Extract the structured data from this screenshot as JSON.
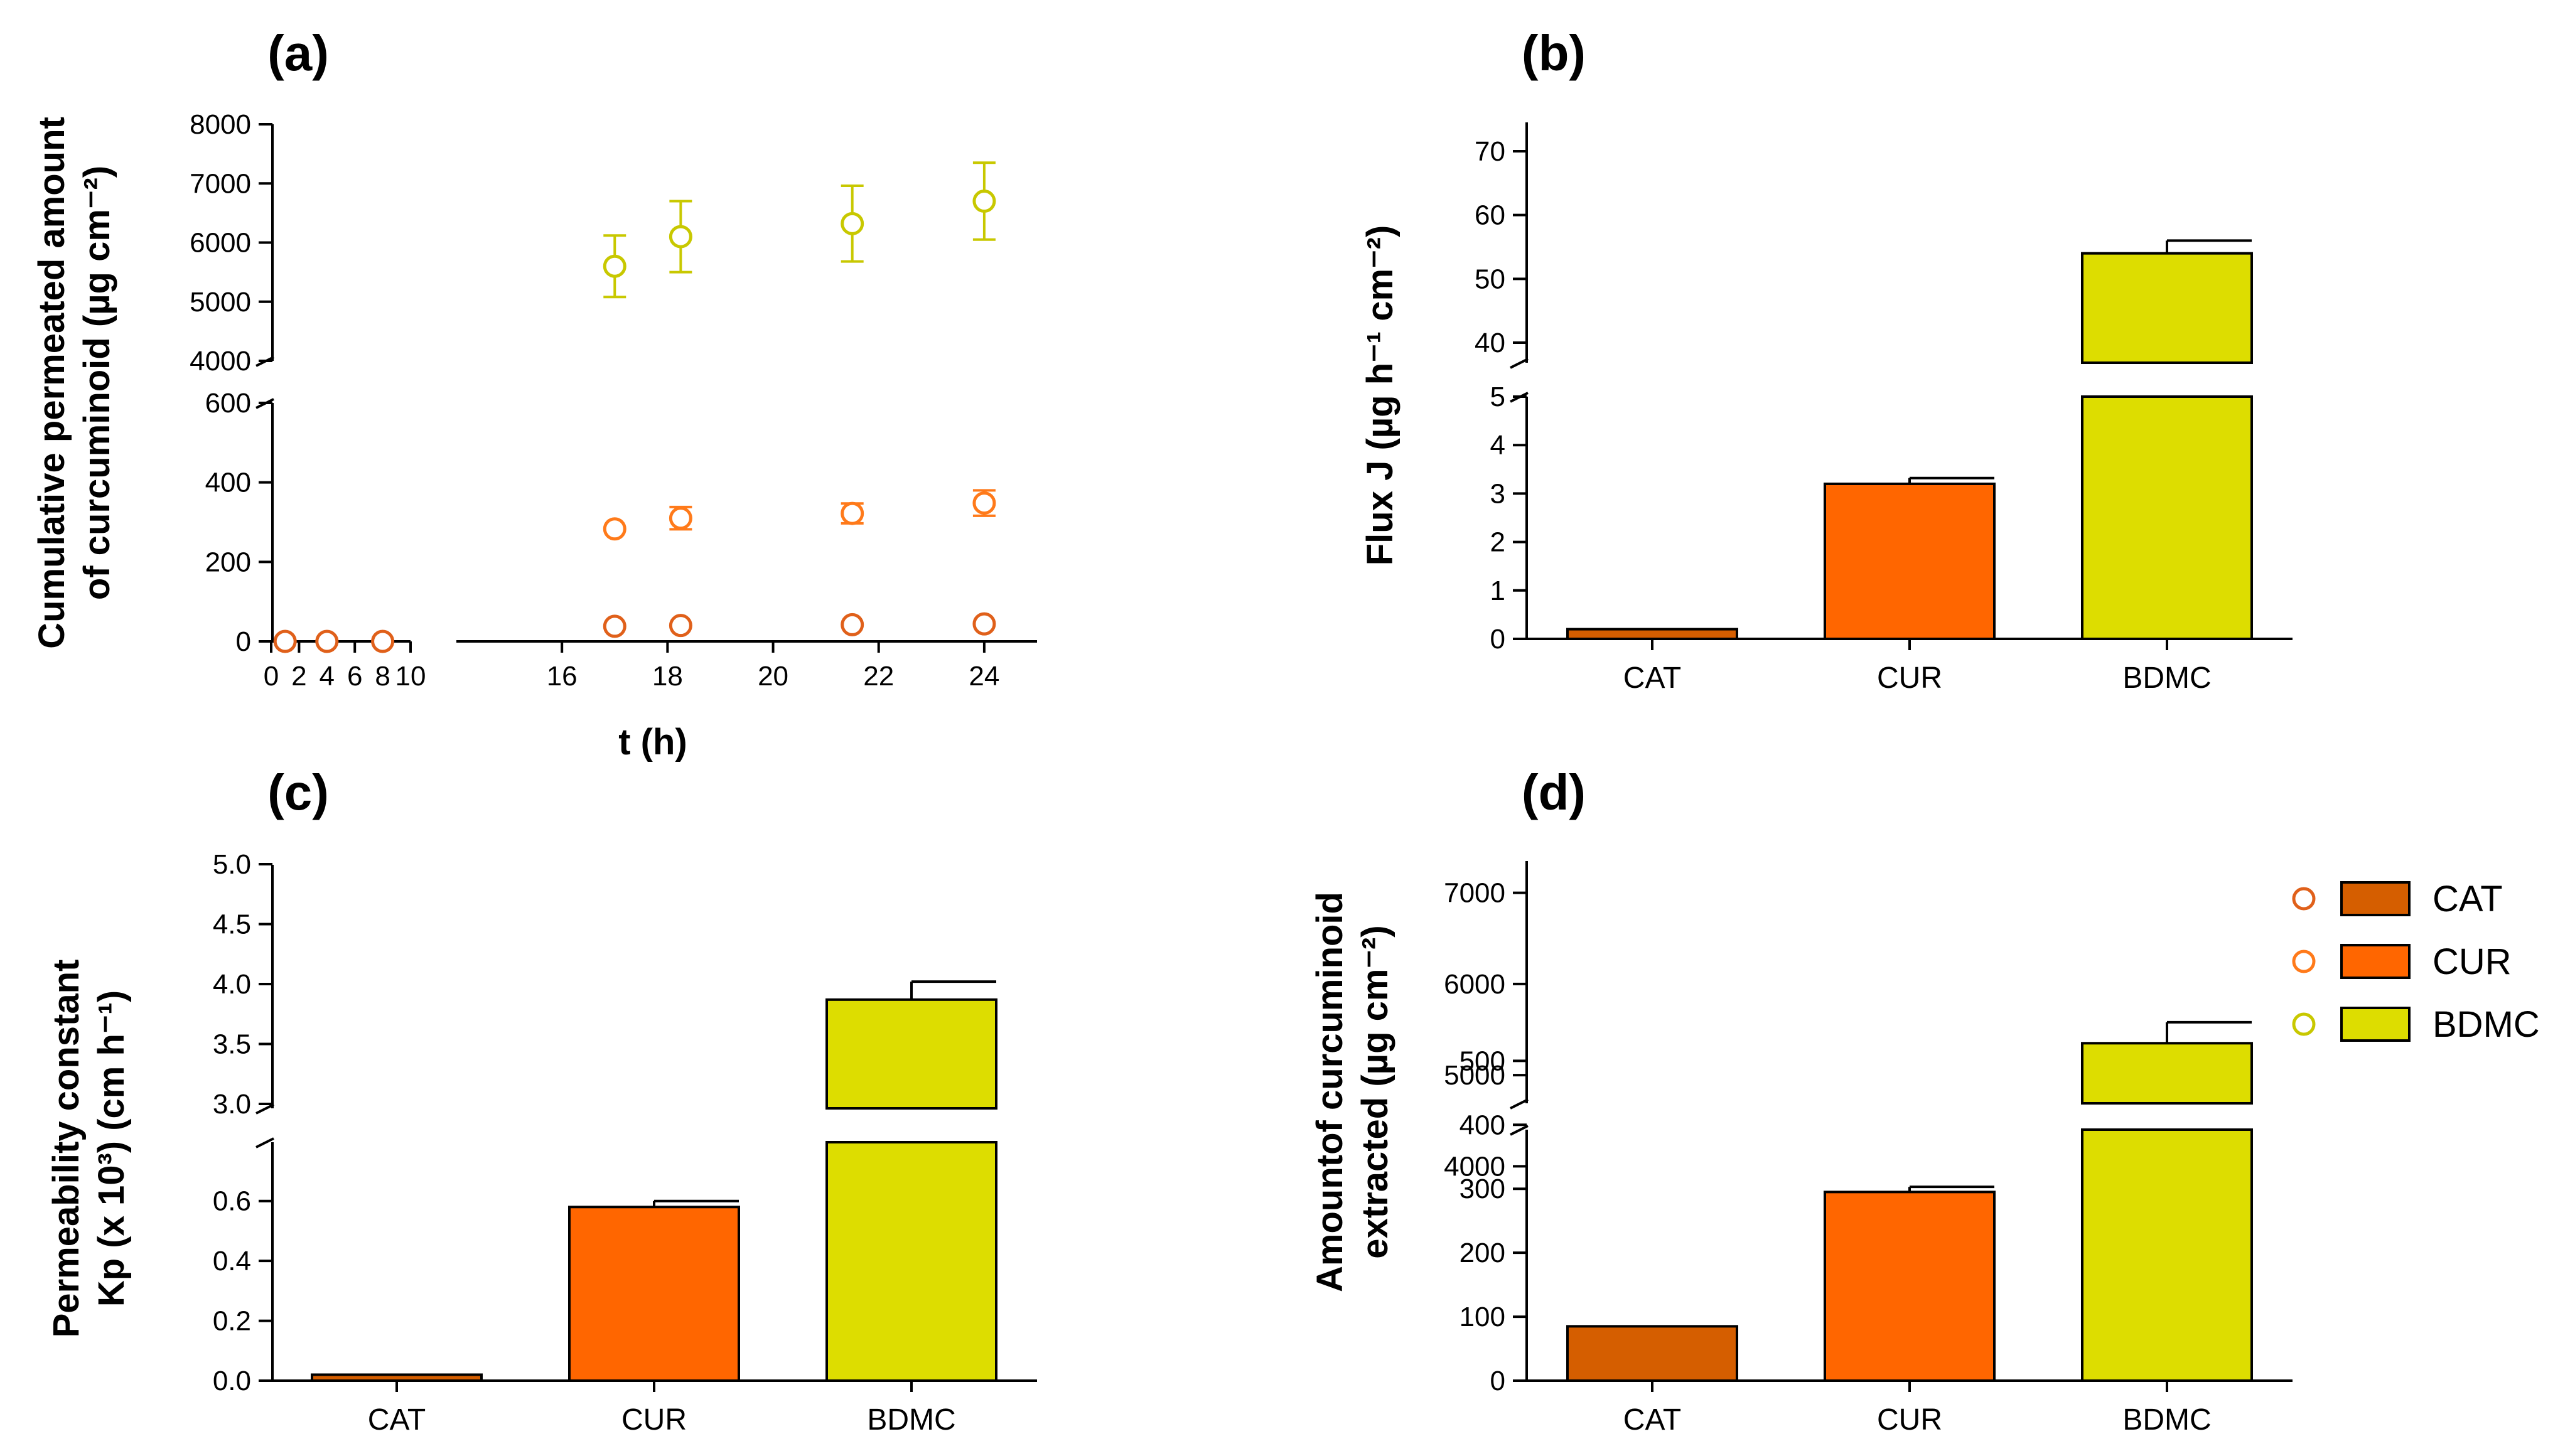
{
  "colors": {
    "CAT": "#D55E00",
    "CUR": "#FF6600",
    "BDMC": "#DDDD00",
    "CAT_marker": "#E0601A",
    "CUR_marker": "#FF7A1A",
    "BDMC_marker": "#C8C800"
  },
  "legend": [
    "CAT",
    "CUR",
    "BDMC"
  ],
  "chart_data": [
    {
      "id": "a",
      "panel_label": "(a)",
      "type": "scatter",
      "xlabel": "t (h)",
      "ylabel_lines": [
        "Cumulative permeated amount",
        "of curcuminoid (µg cm⁻²)"
      ],
      "x_ticks_left": [
        0,
        2,
        4,
        6,
        8,
        10
      ],
      "x_ticks_right": [
        16,
        18,
        20,
        22,
        24
      ],
      "y_ticks_low": [
        0,
        200,
        400,
        600
      ],
      "y_ticks_high": [
        4000,
        5000,
        6000,
        7000,
        8000
      ],
      "series": [
        {
          "name": "CAT",
          "x": [
            1,
            4,
            8,
            17,
            18.25,
            21.5,
            24
          ],
          "y": [
            0,
            0,
            0,
            38,
            40,
            42,
            44
          ],
          "err": [
            0,
            0,
            0,
            0,
            0,
            0,
            0
          ]
        },
        {
          "name": "CUR",
          "x": [
            17,
            18.25,
            21.5,
            24
          ],
          "y": [
            283,
            310,
            322,
            348
          ],
          "err": [
            0,
            28,
            25,
            32
          ]
        },
        {
          "name": "BDMC",
          "x": [
            17,
            18.25,
            21.5,
            24
          ],
          "y": [
            5600,
            6100,
            6320,
            6700
          ],
          "err": [
            520,
            600,
            640,
            650
          ]
        }
      ]
    },
    {
      "id": "b",
      "panel_label": "(b)",
      "type": "bar",
      "ylabel": "Flux J (µg h⁻¹ cm⁻²)",
      "categories": [
        "CAT",
        "CUR",
        "BDMC"
      ],
      "values": [
        0.2,
        3.2,
        54
      ],
      "err": [
        0,
        0.12,
        2
      ],
      "y_ticks_low": [
        0,
        1,
        2,
        3,
        4,
        5
      ],
      "y_ticks_high": [
        40,
        50,
        60,
        70
      ]
    },
    {
      "id": "c",
      "panel_label": "(c)",
      "type": "bar",
      "ylabel_lines": [
        "Permeability constant",
        "Kp (x 10³) (cm h⁻¹)"
      ],
      "categories": [
        "CAT",
        "CUR",
        "BDMC"
      ],
      "values": [
        0.02,
        0.58,
        3.87
      ],
      "err": [
        0,
        0.02,
        0.15
      ],
      "y_ticks_low": [
        "0.0",
        "0.2",
        "0.4",
        "0.6"
      ],
      "y_ticks_high": [
        "3.0",
        "3.5",
        "4.0",
        "4.5",
        "5.0"
      ]
    },
    {
      "id": "d",
      "panel_label": "(d)",
      "type": "bar",
      "ylabel_lines": [
        "Amountof curcuminoid",
        "extracted (µg cm⁻²)"
      ],
      "categories": [
        "CAT",
        "CUR",
        "BDMC"
      ],
      "values": [
        85,
        295,
        5350
      ],
      "err": [
        0,
        8,
        230
      ],
      "y_ticks_low": [
        0,
        100,
        200,
        300,
        400,
        500
      ],
      "y_ticks_high": [
        4000,
        5000,
        6000,
        7000
      ]
    }
  ]
}
